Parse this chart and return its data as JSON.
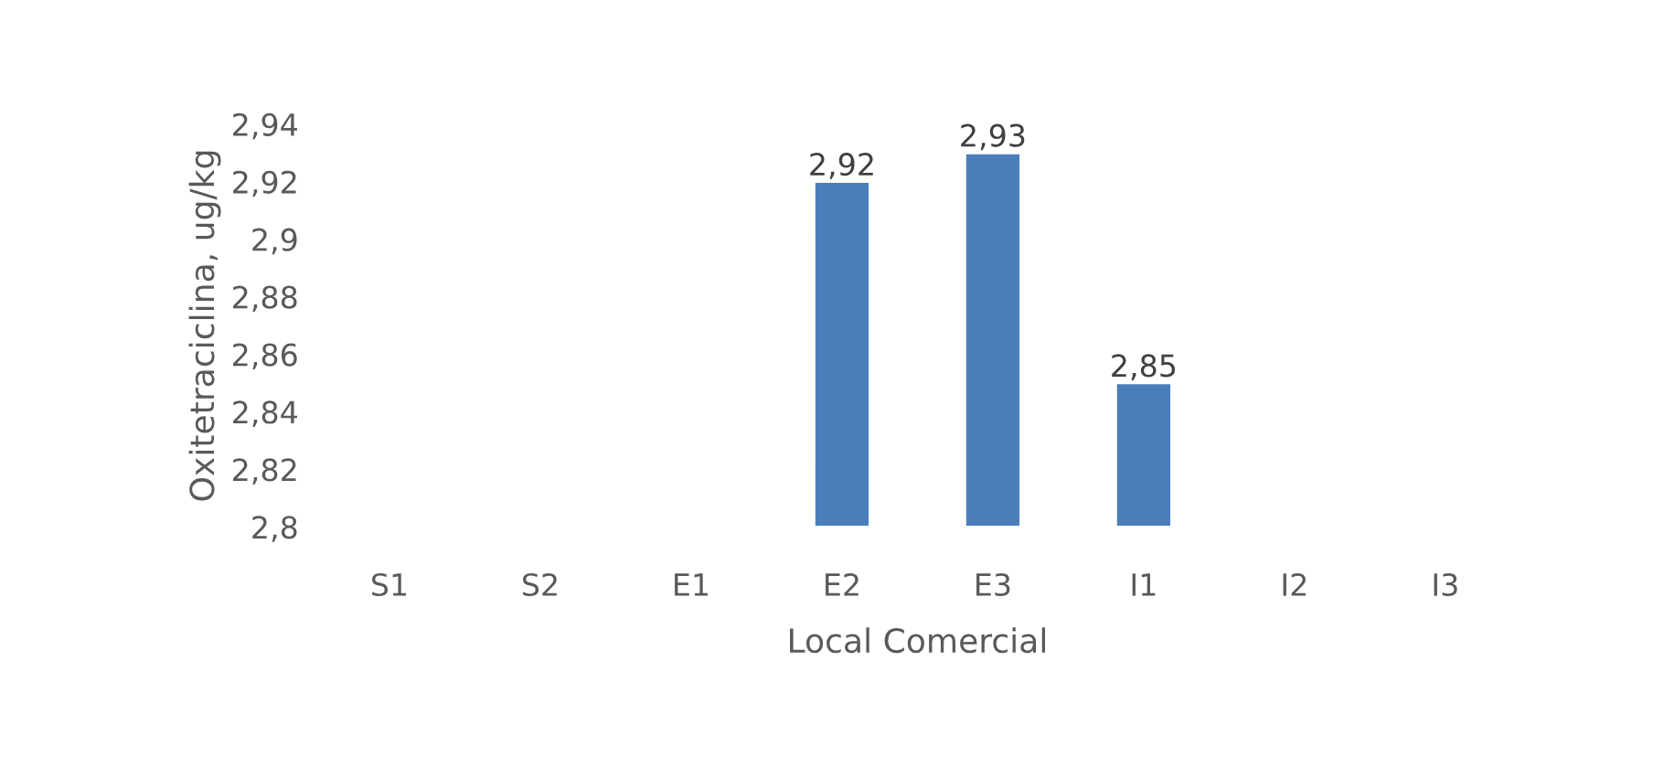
{
  "chart_data": {
    "type": "bar",
    "categories": [
      "S1",
      "S2",
      "E1",
      "E2",
      "E3",
      "I1",
      "I2",
      "I3"
    ],
    "values": [
      null,
      null,
      null,
      2.92,
      2.93,
      2.85,
      null,
      null
    ],
    "value_labels": [
      null,
      null,
      null,
      "2,92",
      "2,93",
      "2,85",
      null,
      null
    ],
    "color": "#4a7ebb",
    "xlabel": "Local Comercial",
    "ylabel": "Oxitetraciclina, ug/kg",
    "ylim": [
      2.8,
      2.94
    ],
    "yticks": [
      {
        "value": 2.8,
        "label": "2,8"
      },
      {
        "value": 2.82,
        "label": "2,82"
      },
      {
        "value": 2.84,
        "label": "2,84"
      },
      {
        "value": 2.86,
        "label": "2,86"
      },
      {
        "value": 2.88,
        "label": "2,88"
      },
      {
        "value": 2.9,
        "label": "2,9"
      },
      {
        "value": 2.92,
        "label": "2,92"
      },
      {
        "value": 2.94,
        "label": "2,94"
      }
    ],
    "grid": false,
    "legend": false
  }
}
